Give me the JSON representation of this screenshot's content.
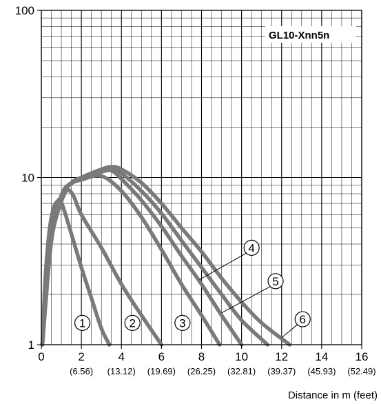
{
  "chart_data": {
    "type": "line",
    "title": "",
    "legend_label": "GL10-Xnn5n",
    "xlabel": "Distance in m (feet)",
    "ylabel": "",
    "x_scale": "linear",
    "y_scale": "log",
    "xlim": [
      0,
      16
    ],
    "ylim": [
      1,
      100
    ],
    "grid": true,
    "x_ticks": [
      "0",
      "2",
      "4",
      "6",
      "8",
      "10",
      "12",
      "14",
      "16"
    ],
    "x_sub_ticks": [
      "(6.56)",
      "(13.12)",
      "(19.69)",
      "(26.25)",
      "(32.81)",
      "(39.37)",
      "(45.93)",
      "(52.49)"
    ],
    "y_ticks": [
      "1",
      "10",
      "100"
    ],
    "series": [
      {
        "label_mark": "1",
        "x": [
          0.05,
          0.2,
          0.4,
          0.6,
          0.8,
          1.0,
          1.5,
          2.0,
          2.5,
          3.0,
          3.4
        ],
        "y": [
          1.0,
          2.5,
          4.8,
          6.5,
          7.2,
          7.1,
          4.6,
          2.9,
          1.9,
          1.25,
          1.0
        ]
      },
      {
        "label_mark": "2",
        "x": [
          0.05,
          0.3,
          0.6,
          1.0,
          1.3,
          1.6,
          2.0,
          3.0,
          4.0,
          5.0,
          6.0
        ],
        "y": [
          1.0,
          2.6,
          4.9,
          7.2,
          8.4,
          7.8,
          6.0,
          3.8,
          2.3,
          1.5,
          1.0
        ]
      },
      {
        "label_mark": "3",
        "x": [
          0.05,
          0.3,
          0.6,
          1.0,
          1.5,
          2.0,
          3.0,
          4.0,
          5.0,
          6.0,
          7.0,
          8.0,
          8.9
        ],
        "y": [
          1.0,
          2.8,
          5.0,
          7.8,
          9.2,
          9.7,
          10.2,
          8.3,
          5.8,
          3.7,
          2.3,
          1.5,
          1.0
        ]
      },
      {
        "label_mark": "4",
        "x": [
          0.05,
          0.5,
          1.0,
          1.5,
          2.0,
          3.0,
          3.5,
          4.0,
          5.0,
          6.0,
          7.0,
          8.0,
          9.0,
          10.0
        ],
        "y": [
          1.0,
          4.2,
          7.8,
          9.3,
          9.9,
          10.8,
          11.0,
          9.8,
          7.3,
          5.1,
          3.4,
          2.3,
          1.5,
          1.0
        ]
      },
      {
        "label_mark": "5",
        "x": [
          0.05,
          0.5,
          1.0,
          1.5,
          2.0,
          3.0,
          3.5,
          4.0,
          5.0,
          6.0,
          7.0,
          8.0,
          9.0,
          10.0,
          11.3
        ],
        "y": [
          1.0,
          4.2,
          7.8,
          9.3,
          10.0,
          11.0,
          11.2,
          10.6,
          8.3,
          6.1,
          4.2,
          2.9,
          2.0,
          1.4,
          1.0
        ]
      },
      {
        "label_mark": "6",
        "x": [
          0.05,
          0.5,
          1.0,
          1.5,
          2.0,
          3.0,
          3.5,
          4.0,
          5.0,
          6.0,
          7.0,
          8.0,
          9.0,
          10.0,
          11.0,
          12.4
        ],
        "y": [
          1.0,
          4.2,
          7.8,
          9.3,
          10.0,
          11.2,
          11.6,
          11.2,
          9.3,
          7.0,
          5.0,
          3.6,
          2.5,
          1.8,
          1.35,
          1.0
        ]
      }
    ],
    "markers": [
      {
        "text": "1",
        "x": 2.05,
        "y": 1.35,
        "leader_to": null
      },
      {
        "text": "2",
        "x": 4.55,
        "y": 1.35,
        "leader_to": null
      },
      {
        "text": "3",
        "x": 7.05,
        "y": 1.35,
        "leader_to": null
      },
      {
        "text": "4",
        "x": 10.5,
        "y": 3.8,
        "leader_to": [
          7.9,
          2.45
        ]
      },
      {
        "text": "5",
        "x": 11.7,
        "y": 2.4,
        "leader_to": [
          9.0,
          1.55
        ]
      },
      {
        "text": "6",
        "x": 13.05,
        "y": 1.42,
        "leader_to": [
          12.0,
          1.1
        ]
      }
    ],
    "line_color": "#7a7a7a",
    "grid_color": "#000000"
  }
}
